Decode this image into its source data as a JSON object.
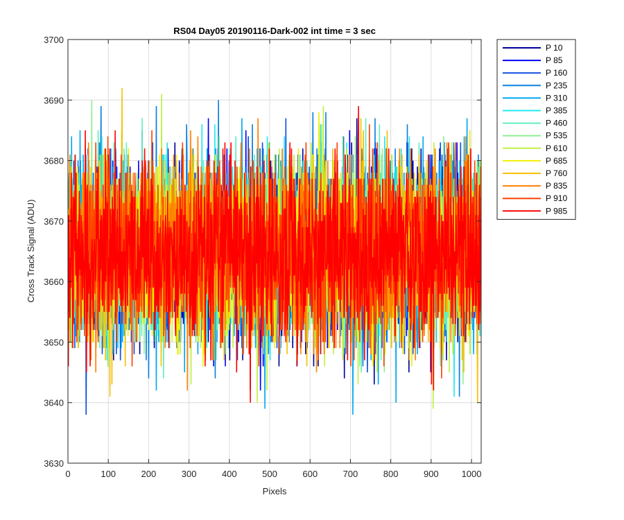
{
  "chart_data": {
    "type": "line",
    "title": "RS04 Day05 20190116-Dark-002 int time = 3 sec",
    "xlabel": "Pixels",
    "ylabel": "Cross Track Signal (ADU)",
    "xlim": [
      0,
      1024
    ],
    "ylim": [
      3630,
      3700
    ],
    "xticks": [
      0,
      100,
      200,
      300,
      400,
      500,
      600,
      700,
      800,
      900,
      1000
    ],
    "yticks": [
      3630,
      3640,
      3650,
      3660,
      3670,
      3680,
      3690,
      3700
    ],
    "xtick_labels": [
      "0",
      "100",
      "200",
      "300",
      "400",
      "500",
      "600",
      "700",
      "800",
      "900",
      "1000"
    ],
    "ytick_labels": [
      "3630",
      "3640",
      "3650",
      "3660",
      "3670",
      "3680",
      "3690",
      "3700"
    ],
    "grid": true,
    "legend_position": "outside-top-right",
    "series_count": 14,
    "points_per_series": 1024,
    "signal_mean": 3665,
    "signal_range_observed": [
      3636,
      3699
    ],
    "series": [
      {
        "name": "P 10",
        "color": "#00009B"
      },
      {
        "name": "P 85",
        "color": "#0000FF"
      },
      {
        "name": "P 160",
        "color": "#0B4FE0"
      },
      {
        "name": "P 235",
        "color": "#0A7FE0"
      },
      {
        "name": "P 310",
        "color": "#00A8F0"
      },
      {
        "name": "P 385",
        "color": "#20E8F0"
      },
      {
        "name": "P 460",
        "color": "#5FF0C0"
      },
      {
        "name": "P 535",
        "color": "#8FF090"
      },
      {
        "name": "P 610",
        "color": "#C0F040"
      },
      {
        "name": "P 685",
        "color": "#F0F000"
      },
      {
        "name": "P 760",
        "color": "#F8C000"
      },
      {
        "name": "P 835",
        "color": "#FF8000"
      },
      {
        "name": "P 910",
        "color": "#FF4000"
      },
      {
        "name": "P 985",
        "color": "#FF0000"
      }
    ]
  }
}
